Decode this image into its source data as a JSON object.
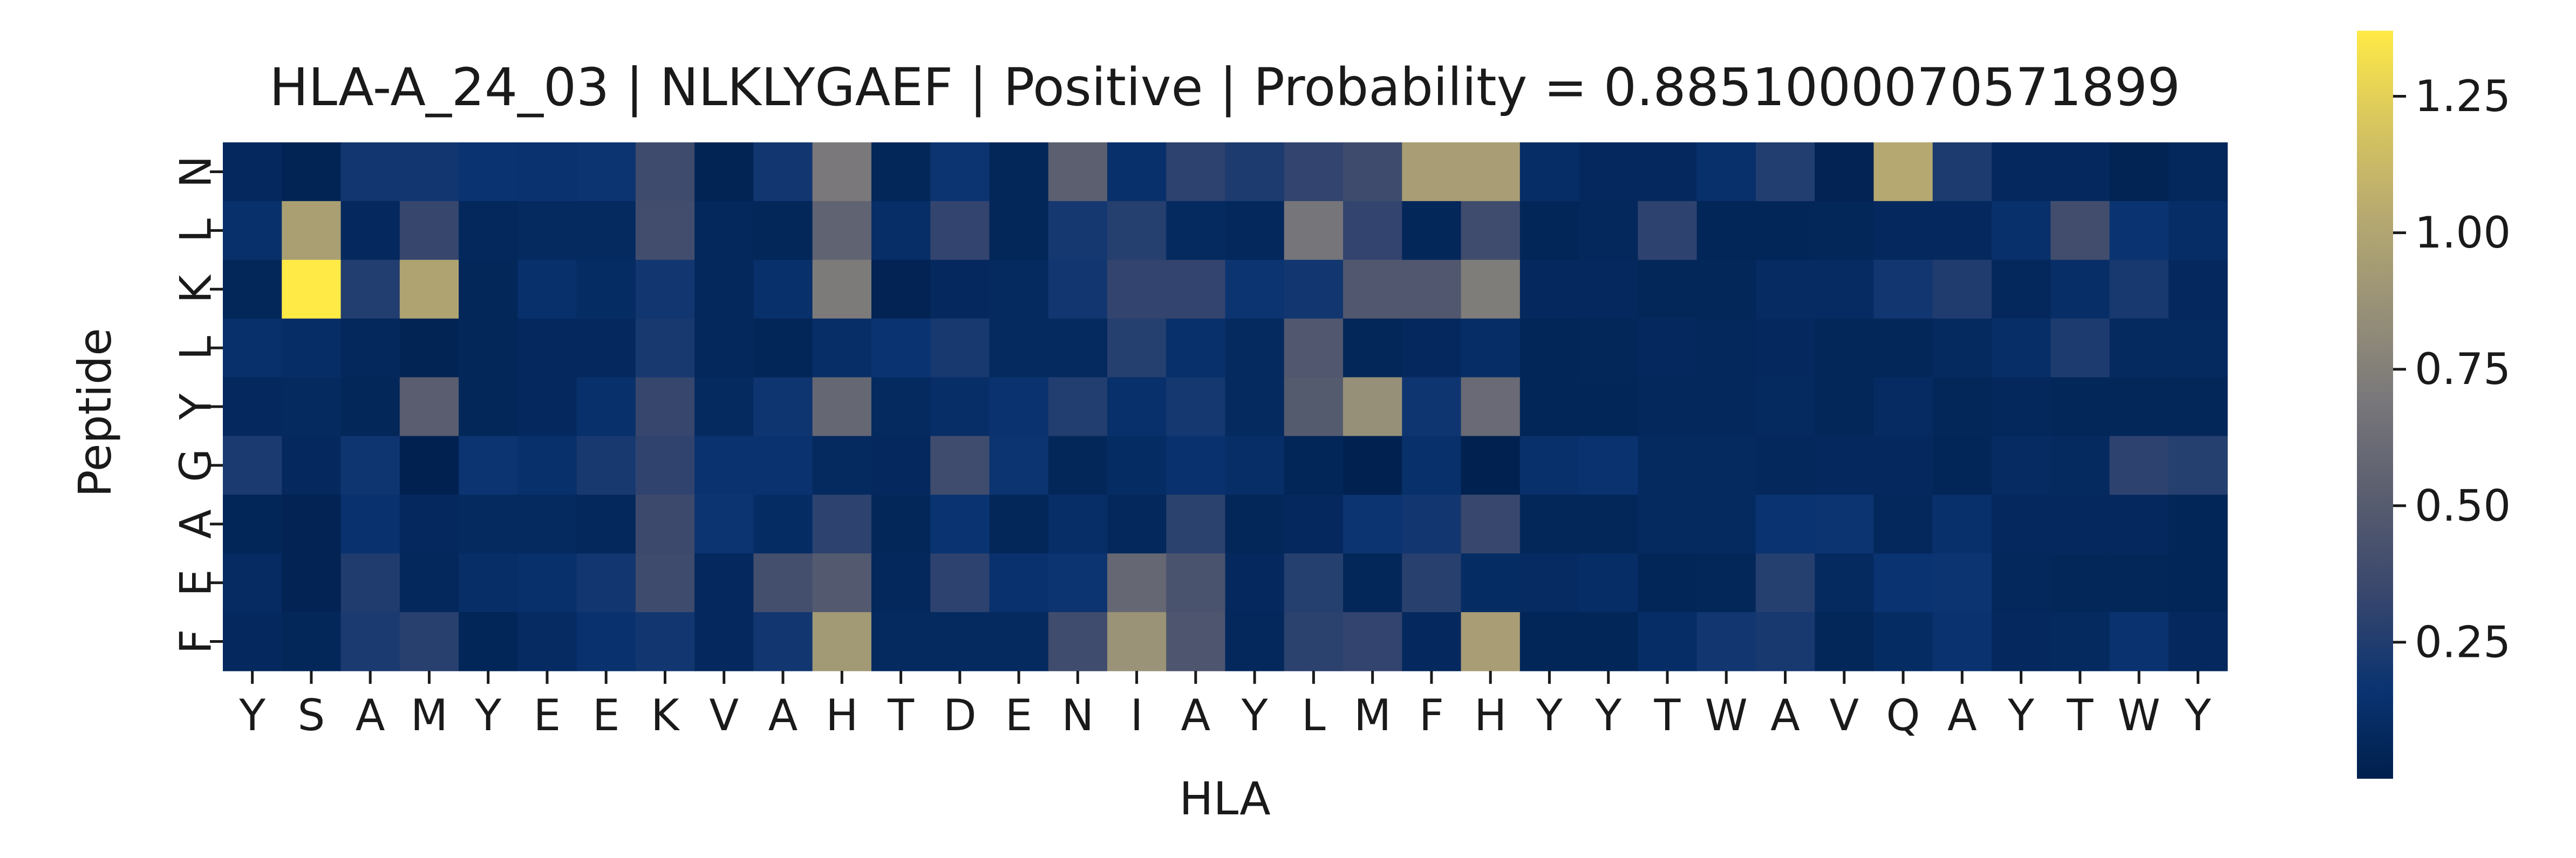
{
  "chart_data": {
    "type": "heatmap",
    "title": "HLA-A_24_03 | NLKLYGAEF | Positive | Probability = 0.8851000070571899",
    "xlabel": "HLA",
    "ylabel": "Peptide",
    "x_tick_labels": [
      "Y",
      "S",
      "A",
      "M",
      "Y",
      "E",
      "E",
      "K",
      "V",
      "A",
      "H",
      "T",
      "D",
      "E",
      "N",
      "I",
      "A",
      "Y",
      "L",
      "M",
      "F",
      "H",
      "Y",
      "Y",
      "T",
      "W",
      "A",
      "V",
      "Q",
      "A",
      "Y",
      "T",
      "W",
      "Y"
    ],
    "y_tick_labels": [
      "N",
      "L",
      "K",
      "L",
      "Y",
      "G",
      "A",
      "E",
      "F"
    ],
    "colormap": "cividis",
    "colorbar": {
      "vmin": 0.0,
      "vmax": 1.37,
      "ticks": [
        0.25,
        0.5,
        0.75,
        1.0,
        1.25
      ],
      "tick_labels": [
        "0.25",
        "0.50",
        "0.75",
        "1.00",
        "1.25"
      ]
    },
    "values": [
      [
        0.08,
        0.04,
        0.2,
        0.2,
        0.17,
        0.16,
        0.18,
        0.37,
        0.04,
        0.2,
        0.7,
        0.06,
        0.18,
        0.06,
        0.52,
        0.14,
        0.3,
        0.24,
        0.32,
        0.37,
        0.95,
        0.95,
        0.12,
        0.08,
        0.08,
        0.14,
        0.26,
        0.03,
        1.02,
        0.24,
        0.08,
        0.08,
        0.04,
        0.07
      ],
      [
        0.14,
        0.96,
        0.08,
        0.33,
        0.07,
        0.09,
        0.09,
        0.39,
        0.07,
        0.06,
        0.55,
        0.13,
        0.32,
        0.06,
        0.21,
        0.27,
        0.09,
        0.07,
        0.68,
        0.32,
        0.06,
        0.38,
        0.05,
        0.07,
        0.3,
        0.05,
        0.05,
        0.06,
        0.08,
        0.08,
        0.14,
        0.39,
        0.17,
        0.12
      ],
      [
        0.06,
        1.37,
        0.26,
        0.99,
        0.06,
        0.14,
        0.11,
        0.2,
        0.07,
        0.14,
        0.72,
        0.03,
        0.08,
        0.09,
        0.2,
        0.32,
        0.32,
        0.18,
        0.2,
        0.46,
        0.46,
        0.73,
        0.08,
        0.08,
        0.06,
        0.06,
        0.1,
        0.1,
        0.2,
        0.25,
        0.07,
        0.13,
        0.22,
        0.08
      ],
      [
        0.14,
        0.12,
        0.07,
        0.04,
        0.06,
        0.08,
        0.08,
        0.22,
        0.07,
        0.05,
        0.13,
        0.17,
        0.22,
        0.09,
        0.09,
        0.27,
        0.14,
        0.09,
        0.46,
        0.06,
        0.08,
        0.12,
        0.05,
        0.06,
        0.08,
        0.07,
        0.08,
        0.06,
        0.06,
        0.09,
        0.13,
        0.24,
        0.09,
        0.09
      ],
      [
        0.08,
        0.09,
        0.06,
        0.51,
        0.06,
        0.08,
        0.14,
        0.33,
        0.09,
        0.19,
        0.58,
        0.09,
        0.13,
        0.16,
        0.26,
        0.14,
        0.21,
        0.09,
        0.49,
        0.86,
        0.19,
        0.6,
        0.05,
        0.05,
        0.07,
        0.07,
        0.09,
        0.06,
        0.1,
        0.06,
        0.07,
        0.06,
        0.06,
        0.06
      ],
      [
        0.23,
        0.08,
        0.19,
        0.02,
        0.18,
        0.14,
        0.22,
        0.31,
        0.16,
        0.16,
        0.09,
        0.08,
        0.38,
        0.18,
        0.06,
        0.11,
        0.15,
        0.13,
        0.05,
        0.02,
        0.14,
        0.02,
        0.14,
        0.16,
        0.09,
        0.09,
        0.07,
        0.08,
        0.08,
        0.05,
        0.1,
        0.09,
        0.3,
        0.27
      ],
      [
        0.05,
        0.03,
        0.15,
        0.08,
        0.09,
        0.09,
        0.07,
        0.36,
        0.18,
        0.11,
        0.3,
        0.06,
        0.17,
        0.06,
        0.13,
        0.07,
        0.29,
        0.06,
        0.08,
        0.18,
        0.2,
        0.34,
        0.06,
        0.06,
        0.09,
        0.09,
        0.17,
        0.18,
        0.07,
        0.14,
        0.08,
        0.08,
        0.08,
        0.05
      ],
      [
        0.1,
        0.03,
        0.25,
        0.07,
        0.13,
        0.14,
        0.2,
        0.37,
        0.08,
        0.4,
        0.48,
        0.07,
        0.3,
        0.15,
        0.18,
        0.58,
        0.43,
        0.08,
        0.27,
        0.06,
        0.28,
        0.11,
        0.1,
        0.12,
        0.05,
        0.06,
        0.27,
        0.09,
        0.17,
        0.18,
        0.07,
        0.06,
        0.06,
        0.05
      ],
      [
        0.08,
        0.06,
        0.23,
        0.28,
        0.05,
        0.1,
        0.15,
        0.2,
        0.08,
        0.2,
        0.92,
        0.09,
        0.09,
        0.09,
        0.38,
        0.88,
        0.45,
        0.07,
        0.29,
        0.32,
        0.08,
        0.95,
        0.05,
        0.05,
        0.12,
        0.2,
        0.22,
        0.06,
        0.11,
        0.16,
        0.08,
        0.09,
        0.16,
        0.08
      ]
    ]
  }
}
